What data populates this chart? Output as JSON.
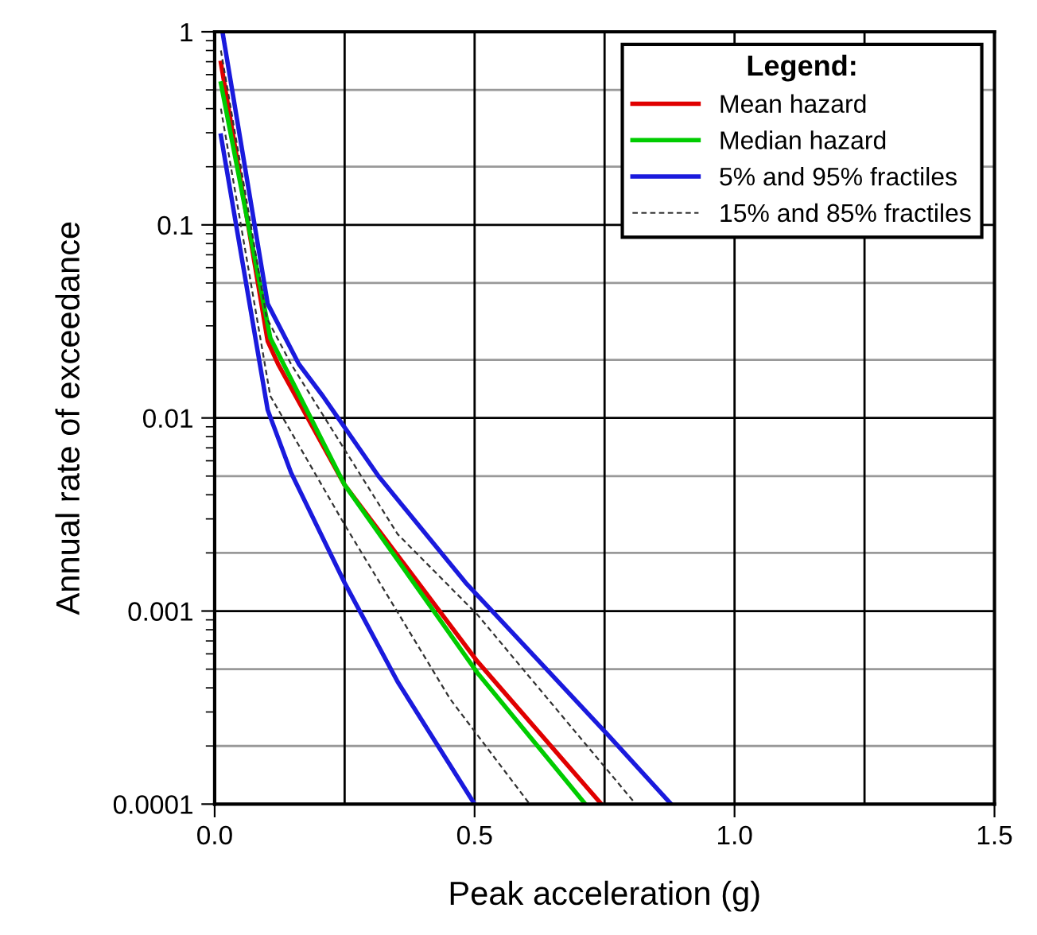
{
  "chart_data": {
    "type": "line",
    "xlabel": "Peak acceleration (g)",
    "ylabel": "Annual rate of exceedance",
    "legend_title": "Legend:",
    "log": "y",
    "xlim": [
      0,
      1.5
    ],
    "ylim": [
      0.0001,
      1
    ],
    "xticks": [
      {
        "value": 0,
        "label": "0.0"
      },
      0.5,
      {
        "value": 1,
        "label": "1.0"
      },
      1.5
    ],
    "yticks": [
      0.0001,
      0.001,
      0.01,
      0.1,
      1
    ],
    "grid": true,
    "legend": "top right",
    "series": [
      {
        "name": "Mean hazard",
        "color": "#e00000",
        "x": [
          0.012,
          0.102,
          0.122,
          0.25,
          0.505,
          0.744
        ],
        "values": [
          0.69,
          0.025,
          0.019,
          0.0045,
          0.00055,
          0.0001
        ]
      },
      {
        "name": "Median hazard",
        "color": "#00cc00",
        "x": [
          0.012,
          0.107,
          0.25,
          0.505,
          0.713
        ],
        "values": [
          0.54,
          0.026,
          0.0045,
          0.00048,
          0.0001
        ]
      },
      {
        "name": "5% and 95% fractiles",
        "color": "#1a1add",
        "x": [
          0.015,
          0.102,
          0.162,
          0.208,
          0.315,
          0.483,
          0.749,
          0.878
        ],
        "values": [
          1,
          0.039,
          0.019,
          0.013,
          0.005,
          0.0014,
          0.00024,
          0.0001
        ]
      },
      {
        "color": "#1a1add",
        "x": [
          0.012,
          0.102,
          0.147,
          0.25,
          0.352,
          0.5
        ],
        "values": [
          0.29,
          0.011,
          0.0052,
          0.0014,
          0.00043,
          0.0001
        ]
      },
      {
        "name": "15% and 85% fractiles",
        "color": "#333333",
        "line_style": "dashed",
        "x": [
          0.012,
          0.1,
          0.147,
          0.352,
          0.505,
          0.81
        ],
        "values": [
          0.8,
          0.033,
          0.019,
          0.0025,
          0.00096,
          0.0001
        ]
      },
      {
        "color": "#333333",
        "line_style": "dashed",
        "x": [
          0.012,
          0.107,
          0.25,
          0.453,
          0.606
        ],
        "values": [
          0.4,
          0.013,
          0.0028,
          0.00035,
          0.0001
        ]
      }
    ]
  }
}
